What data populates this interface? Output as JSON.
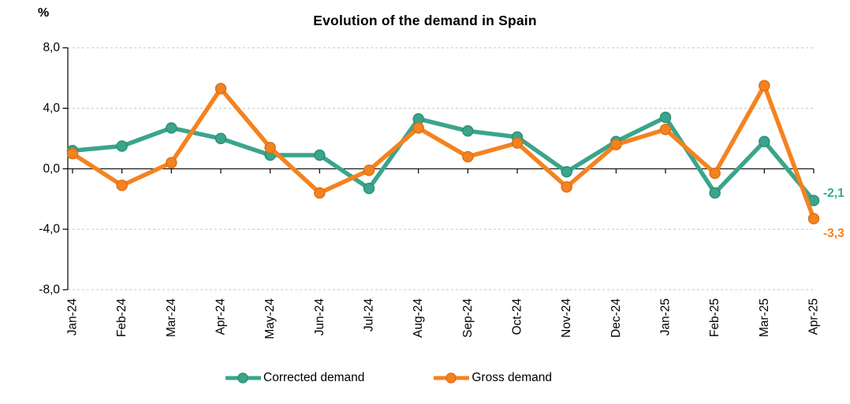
{
  "header": {
    "unit_label": "%",
    "title": "Evolution of the demand in Spain"
  },
  "chart_data": {
    "type": "line",
    "title": "Evolution of the demand in Spain",
    "ylabel": "%",
    "xlabel": "",
    "ylim": [
      -8,
      8
    ],
    "grid": "horizontal-dashed",
    "legend_position": "bottom",
    "zero_line": true,
    "yticks": [
      {
        "value": 8,
        "label": "8,0"
      },
      {
        "value": 4,
        "label": "4,0"
      },
      {
        "value": 0,
        "label": "0,0"
      },
      {
        "value": -4,
        "label": "-4,0"
      },
      {
        "value": -8,
        "label": "-8,0"
      }
    ],
    "categories": [
      "Jan-24",
      "Feb-24",
      "Mar-24",
      "Apr-24",
      "May-24",
      "Jun-24",
      "Jul-24",
      "Aug-24",
      "Sep-24",
      "Oct-24",
      "Nov-24",
      "Dec-24",
      "Jan-25",
      "Feb-25",
      "Mar-25",
      "Apr-25"
    ],
    "series": [
      {
        "name": "Corrected demand",
        "color": "#3aa58c",
        "marker_edge": "#2d8f77",
        "values": [
          1.2,
          1.5,
          2.7,
          2.0,
          0.9,
          0.9,
          -1.3,
          3.3,
          2.5,
          2.1,
          -0.2,
          1.8,
          3.4,
          -1.6,
          1.8,
          -2.1
        ],
        "end_label": "-2,1"
      },
      {
        "name": "Gross demand",
        "color": "#f58220",
        "marker_edge": "#dd6f15",
        "values": [
          1.0,
          -1.1,
          0.4,
          5.3,
          1.4,
          -1.6,
          -0.1,
          2.7,
          0.8,
          1.7,
          -1.2,
          1.6,
          2.6,
          -0.3,
          5.5,
          -3.3
        ],
        "end_label": "-3,3"
      }
    ]
  },
  "colors": {
    "grid": "#c8c8c8",
    "axis": "#000000",
    "text": "#000000",
    "background": "#ffffff"
  }
}
